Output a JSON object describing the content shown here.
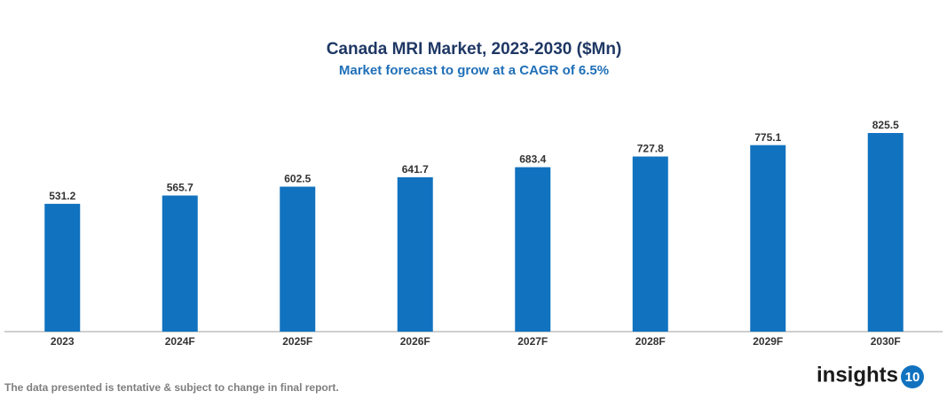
{
  "chart_data": {
    "type": "bar",
    "title": "Canada MRI Market, 2023-2030 ($Mn)",
    "subtitle": "Market forecast to grow at a CAGR of 6.5%",
    "categories": [
      "2023",
      "2024F",
      "2025F",
      "2026F",
      "2027F",
      "2028F",
      "2029F",
      "2030F"
    ],
    "values": [
      531.2,
      565.7,
      602.5,
      641.7,
      683.4,
      727.8,
      775.1,
      825.5
    ],
    "color": "#1172bf"
  },
  "note": "The data presented is tentative & subject to change in final report.",
  "logo": {
    "text": "insights",
    "badge": "10"
  }
}
